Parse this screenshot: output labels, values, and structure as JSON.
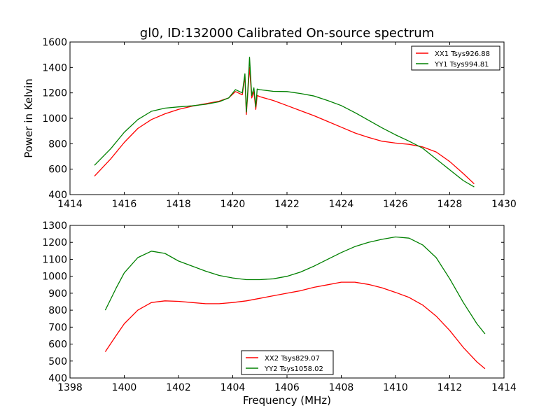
{
  "figure": {
    "title": "gl0, ID:132000 Calibrated On-source spectrum",
    "ylabel_top": "Power in Kelvin",
    "xlabel_bottom": "Frequency (MHz)"
  },
  "colors": {
    "red": "#ff0000",
    "green": "#008000"
  },
  "chart_data": [
    {
      "type": "line",
      "title": "gl0, ID:132000 Calibrated On-source spectrum",
      "xlabel": "",
      "ylabel": "Power in Kelvin",
      "xlim": [
        1414,
        1430
      ],
      "ylim": [
        400,
        1600
      ],
      "xticks": [
        1414,
        1416,
        1418,
        1420,
        1422,
        1424,
        1426,
        1428,
        1430
      ],
      "yticks": [
        400,
        600,
        800,
        1000,
        1200,
        1400,
        1600
      ],
      "grid": false,
      "legend": "top-right",
      "series": [
        {
          "name": "XX1 Tsys926.88",
          "color": "#ff0000",
          "x": [
            1414.9,
            1415.5,
            1416.0,
            1416.5,
            1417.0,
            1417.5,
            1418.0,
            1418.5,
            1419.0,
            1419.5,
            1419.85,
            1420.1,
            1420.35,
            1420.45,
            1420.5,
            1420.55,
            1420.62,
            1420.7,
            1420.78,
            1420.85,
            1420.9,
            1421.0,
            1421.5,
            1422.0,
            1422.5,
            1423.0,
            1423.5,
            1424.0,
            1424.5,
            1425.0,
            1425.5,
            1426.0,
            1426.5,
            1427.0,
            1427.5,
            1428.0,
            1428.5,
            1428.9
          ],
          "y": [
            545,
            680,
            810,
            920,
            990,
            1035,
            1070,
            1095,
            1115,
            1135,
            1160,
            1210,
            1185,
            1330,
            1030,
            1180,
            1400,
            1160,
            1210,
            1070,
            1180,
            1170,
            1140,
            1100,
            1060,
            1020,
            975,
            930,
            885,
            850,
            820,
            805,
            795,
            775,
            735,
            660,
            565,
            485
          ]
        },
        {
          "name": "YY1 Tsys994.81",
          "color": "#008000",
          "x": [
            1414.9,
            1415.5,
            1416.0,
            1416.5,
            1417.0,
            1417.5,
            1418.0,
            1418.5,
            1419.0,
            1419.5,
            1419.85,
            1420.1,
            1420.35,
            1420.45,
            1420.5,
            1420.55,
            1420.62,
            1420.7,
            1420.78,
            1420.85,
            1420.9,
            1421.0,
            1421.5,
            1422.0,
            1422.5,
            1423.0,
            1423.5,
            1424.0,
            1424.5,
            1425.0,
            1425.5,
            1426.0,
            1426.5,
            1427.0,
            1427.5,
            1428.0,
            1428.5,
            1428.9
          ],
          "y": [
            630,
            760,
            890,
            990,
            1055,
            1080,
            1090,
            1098,
            1110,
            1130,
            1160,
            1225,
            1200,
            1350,
            1050,
            1200,
            1480,
            1180,
            1240,
            1090,
            1230,
            1225,
            1212,
            1210,
            1195,
            1175,
            1140,
            1100,
            1045,
            985,
            925,
            870,
            820,
            765,
            680,
            595,
            510,
            460
          ]
        }
      ]
    },
    {
      "type": "line",
      "title": "",
      "xlabel": "Frequency (MHz)",
      "ylabel": "",
      "xlim": [
        1398,
        1414
      ],
      "ylim": [
        400,
        1300
      ],
      "xticks": [
        1398,
        1400,
        1402,
        1404,
        1406,
        1408,
        1410,
        1412,
        1414
      ],
      "yticks": [
        400,
        500,
        600,
        700,
        800,
        900,
        1000,
        1100,
        1200,
        1300
      ],
      "grid": false,
      "legend": "bottom-center",
      "series": [
        {
          "name": "XX2 Tsys829.07",
          "color": "#ff0000",
          "x": [
            1399.3,
            1399.7,
            1400.0,
            1400.5,
            1401.0,
            1401.5,
            1402.0,
            1402.5,
            1403.0,
            1403.5,
            1404.0,
            1404.5,
            1405.0,
            1405.5,
            1406.0,
            1406.5,
            1407.0,
            1407.5,
            1408.0,
            1408.5,
            1409.0,
            1409.5,
            1410.0,
            1410.5,
            1411.0,
            1411.5,
            1412.0,
            1412.5,
            1413.0,
            1413.3
          ],
          "y": [
            555,
            650,
            720,
            800,
            845,
            855,
            852,
            845,
            838,
            838,
            845,
            855,
            870,
            885,
            900,
            915,
            935,
            950,
            965,
            965,
            952,
            932,
            905,
            875,
            830,
            765,
            680,
            580,
            495,
            455
          ]
        },
        {
          "name": "YY2 Tsys1058.02",
          "color": "#008000",
          "x": [
            1399.3,
            1399.7,
            1400.0,
            1400.5,
            1401.0,
            1401.5,
            1402.0,
            1402.5,
            1403.0,
            1403.5,
            1404.0,
            1404.5,
            1405.0,
            1405.5,
            1406.0,
            1406.5,
            1407.0,
            1407.5,
            1408.0,
            1408.5,
            1409.0,
            1409.5,
            1410.0,
            1410.5,
            1411.0,
            1411.5,
            1412.0,
            1412.5,
            1413.0,
            1413.3
          ],
          "y": [
            800,
            930,
            1020,
            1110,
            1148,
            1135,
            1090,
            1060,
            1030,
            1005,
            990,
            980,
            980,
            985,
            1000,
            1025,
            1060,
            1100,
            1140,
            1175,
            1200,
            1218,
            1232,
            1225,
            1185,
            1110,
            985,
            845,
            720,
            660
          ]
        }
      ]
    }
  ]
}
